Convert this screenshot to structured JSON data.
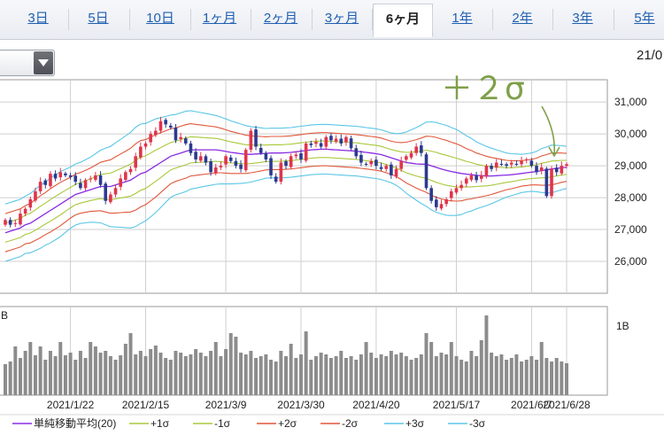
{
  "tabs": [
    "3日",
    "5日",
    "10日",
    "1ヶ月",
    "2ヶ月",
    "3ヶ月",
    "6ヶ月",
    "1年",
    "2年",
    "3年",
    "5年"
  ],
  "active_tab": "6ヶ月",
  "date_partial": "21/0",
  "annotation": "＋２σ",
  "colors": {
    "ma": "#8a2be2",
    "p1": "#a8c83a",
    "m1": "#a8c83a",
    "p2": "#e0573a",
    "m2": "#e0573a",
    "p3": "#5bc6e6",
    "m3": "#5bc6e6",
    "up": "#e0344b",
    "down": "#2b3a8f",
    "volume": "#8c8c8c",
    "grid": "#cfcfcf",
    "annotation": "#7fa04a"
  },
  "chart_data": {
    "type": "candlestick",
    "x_tick_labels": [
      "2021/1/22",
      "2021/2/15",
      "2021/3/9",
      "2021/3/30",
      "2021/4/20",
      "2021/5/17",
      "2021/6/7",
      "2021/6/28"
    ],
    "y_tick_labels": [
      "26,000",
      "27,000",
      "28,000",
      "29,000",
      "30,000",
      "31,000"
    ],
    "y_range": [
      25000,
      31700
    ],
    "volume_tick_label": "1B",
    "volume_left_label": "B",
    "legend": [
      {
        "label": "単純移動平均(20)",
        "color_key": "ma"
      },
      {
        "label": "+1σ",
        "color_key": "p1"
      },
      {
        "label": "-1σ",
        "color_key": "m1"
      },
      {
        "label": "+2σ",
        "color_key": "p2"
      },
      {
        "label": "-2σ",
        "color_key": "m2"
      },
      {
        "label": "+3σ",
        "color_key": "p3"
      },
      {
        "label": "-3σ",
        "color_key": "m3"
      }
    ],
    "close": [
      27300,
      27150,
      27200,
      27500,
      27650,
      27950,
      28200,
      28500,
      28400,
      28750,
      28600,
      28800,
      28700,
      28650,
      28500,
      28300,
      28550,
      28600,
      28700,
      28400,
      27900,
      28100,
      28300,
      28600,
      28800,
      28900,
      29300,
      29600,
      29700,
      30000,
      30100,
      30400,
      30300,
      30200,
      29800,
      29900,
      29700,
      29400,
      29200,
      29300,
      29100,
      28800,
      28950,
      29000,
      29300,
      29150,
      29000,
      28900,
      29500,
      30100,
      29600,
      29400,
      29200,
      28700,
      28500,
      29100,
      29000,
      29300,
      29350,
      29200,
      29700,
      29650,
      29750,
      29600,
      29900,
      29800,
      29850,
      29700,
      29900,
      29550,
      29300,
      29100,
      29050,
      29150,
      29000,
      28900,
      29000,
      28700,
      28900,
      29150,
      29300,
      29400,
      29600,
      29400,
      28300,
      27900,
      27700,
      27800,
      27950,
      28200,
      28300,
      28400,
      28600,
      28700,
      28550,
      28700,
      29000,
      28900,
      29100,
      29050,
      29000,
      29100,
      29050,
      29150,
      29200,
      29000,
      28800,
      28950,
      28050,
      28900,
      28800,
      29000,
      29050
    ],
    "sma20": [
      26900,
      26950,
      27000,
      27050,
      27150,
      27200,
      27300,
      27400,
      27500,
      27600,
      27700,
      27800,
      27900,
      28000,
      28100,
      28150,
      28200,
      28250,
      28300,
      28350,
      28350,
      28350,
      28400,
      28450,
      28500,
      28550,
      28650,
      28750,
      28800,
      28900,
      29000,
      29100,
      29200,
      29300,
      29350,
      29400,
      29450,
      29500,
      29500,
      29500,
      29500,
      29500,
      29500,
      29480,
      29450,
      29420,
      29400,
      29380,
      29360,
      29360,
      29370,
      29380,
      29390,
      29400,
      29400,
      29400,
      29410,
      29420,
      29440,
      29460,
      29480,
      29500,
      29510,
      29520,
      29520,
      29510,
      29500,
      29490,
      29480,
      29470,
      29460,
      29440,
      29420,
      29400,
      29380,
      29350,
      29300,
      29250,
      29200,
      29150,
      29100,
      29080,
      29060,
      29050,
      29050,
      29000,
      28950,
      28900,
      28860,
      28820,
      28790,
      28760,
      28740,
      28720,
      28700,
      28690,
      28680,
      28680,
      28690,
      28700,
      28710,
      28720,
      28740,
      28760,
      28780,
      28800,
      28820,
      28850,
      28870,
      28900,
      28920,
      28940,
      28950
    ],
    "sigma": [
      300,
      300,
      300,
      300,
      300,
      310,
      320,
      330,
      330,
      340,
      340,
      340,
      330,
      320,
      320,
      320,
      330,
      340,
      360,
      380,
      400,
      420,
      440,
      460,
      480,
      500,
      520,
      520,
      510,
      500,
      490,
      470,
      450,
      430,
      420,
      420,
      420,
      410,
      400,
      390,
      380,
      370,
      360,
      350,
      340,
      330,
      320,
      310,
      300,
      290,
      280,
      270,
      260,
      260,
      260,
      260,
      260,
      260,
      260,
      260,
      260,
      260,
      260,
      260,
      260,
      260,
      260,
      260,
      260,
      260,
      260,
      260,
      260,
      260,
      260,
      260,
      260,
      260,
      270,
      290,
      320,
      350,
      380,
      410,
      440,
      460,
      470,
      470,
      470,
      460,
      450,
      430,
      400,
      380,
      350,
      330,
      310,
      290,
      270,
      250,
      230,
      220,
      210,
      200,
      200,
      200,
      210,
      230,
      240,
      250,
      240,
      230,
      220
    ]
  },
  "volume_data": [
    35,
    38,
    55,
    42,
    50,
    60,
    45,
    55,
    40,
    50,
    44,
    60,
    45,
    48,
    40,
    50,
    42,
    60,
    55,
    48,
    50,
    44,
    40,
    45,
    58,
    70,
    46,
    50,
    44,
    52,
    56,
    48,
    42,
    40,
    50,
    48,
    44,
    46,
    52,
    48,
    44,
    50,
    60,
    44,
    52,
    70,
    66,
    48,
    46,
    50,
    42,
    44,
    46,
    40,
    38,
    50,
    44,
    58,
    42,
    46,
    72,
    40,
    44,
    48,
    46,
    42,
    44,
    50,
    42,
    44,
    40,
    46,
    60,
    48,
    42,
    46,
    44,
    50,
    46,
    48,
    44,
    40,
    42,
    46,
    70,
    60,
    44,
    48,
    46,
    60,
    44,
    40,
    38,
    50,
    44,
    62,
    90,
    48,
    44,
    46,
    40,
    42,
    46,
    38,
    40,
    44,
    40,
    60,
    42,
    38,
    42,
    38,
    36
  ]
}
